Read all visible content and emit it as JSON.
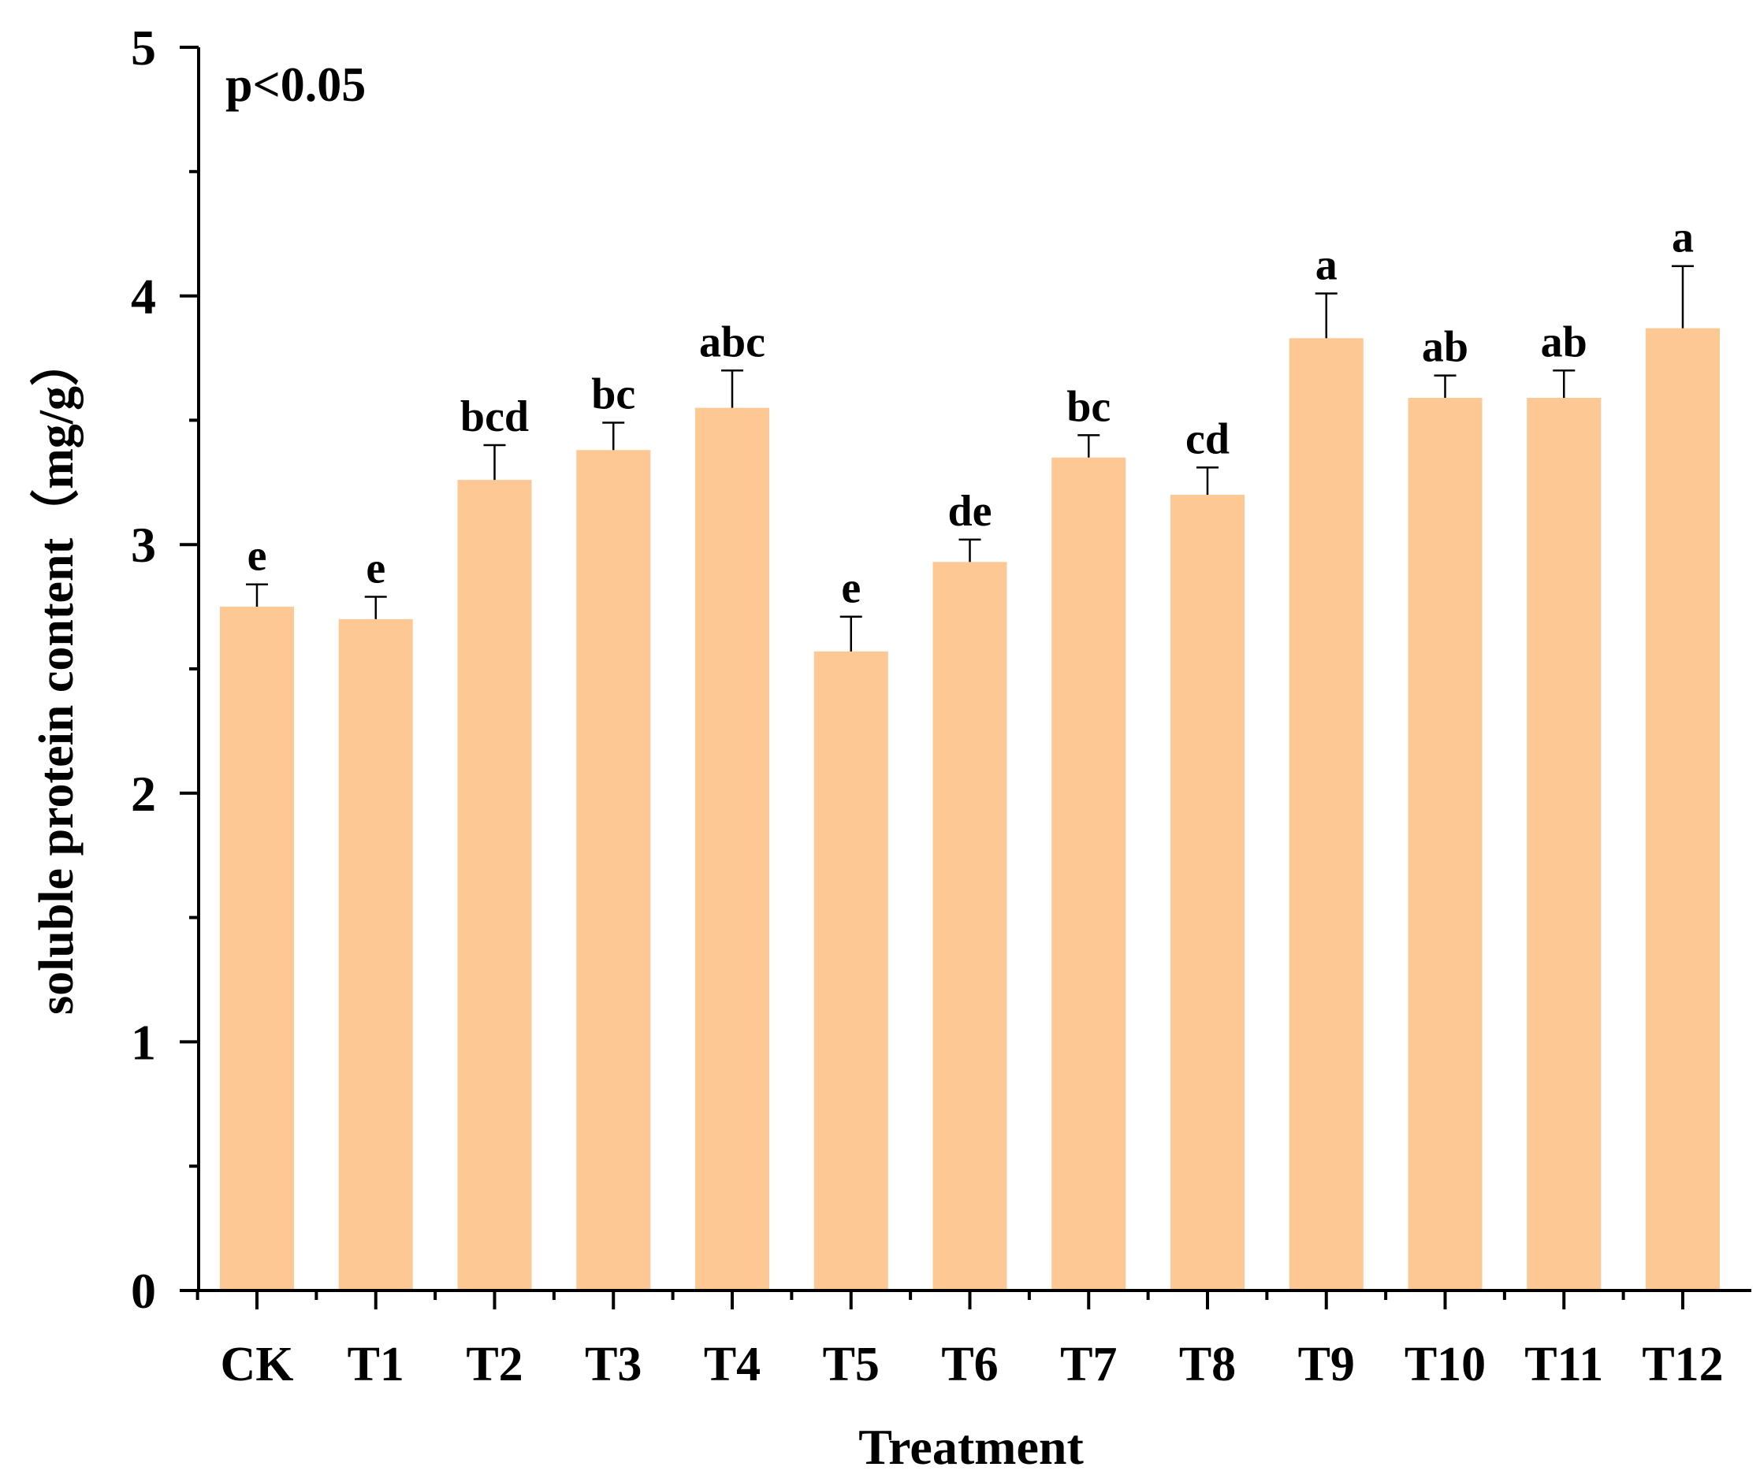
{
  "chart_data": {
    "type": "bar",
    "annotation": "p<0.05",
    "xlabel": "Treatment",
    "ylabel": "soluble protein content（mg/g）",
    "ylim": [
      0,
      5
    ],
    "yticks": [
      "0",
      "1",
      "2",
      "3",
      "4",
      "5"
    ],
    "categories": [
      "CK",
      "T1",
      "T2",
      "T3",
      "T4",
      "T5",
      "T6",
      "T7",
      "T8",
      "T9",
      "T10",
      "T11",
      "T12"
    ],
    "values": [
      2.75,
      2.7,
      3.26,
      3.38,
      3.55,
      2.57,
      2.93,
      3.35,
      3.2,
      3.83,
      3.59,
      3.59,
      3.87
    ],
    "errors": [
      0.09,
      0.09,
      0.14,
      0.11,
      0.15,
      0.14,
      0.09,
      0.09,
      0.11,
      0.18,
      0.09,
      0.11,
      0.25
    ],
    "significance": [
      "e",
      "e",
      "bcd",
      "bc",
      "abc",
      "e",
      "de",
      "bc",
      "cd",
      "a",
      "ab",
      "ab",
      "a"
    ],
    "bar_color": "#FDC894",
    "grid": false
  }
}
